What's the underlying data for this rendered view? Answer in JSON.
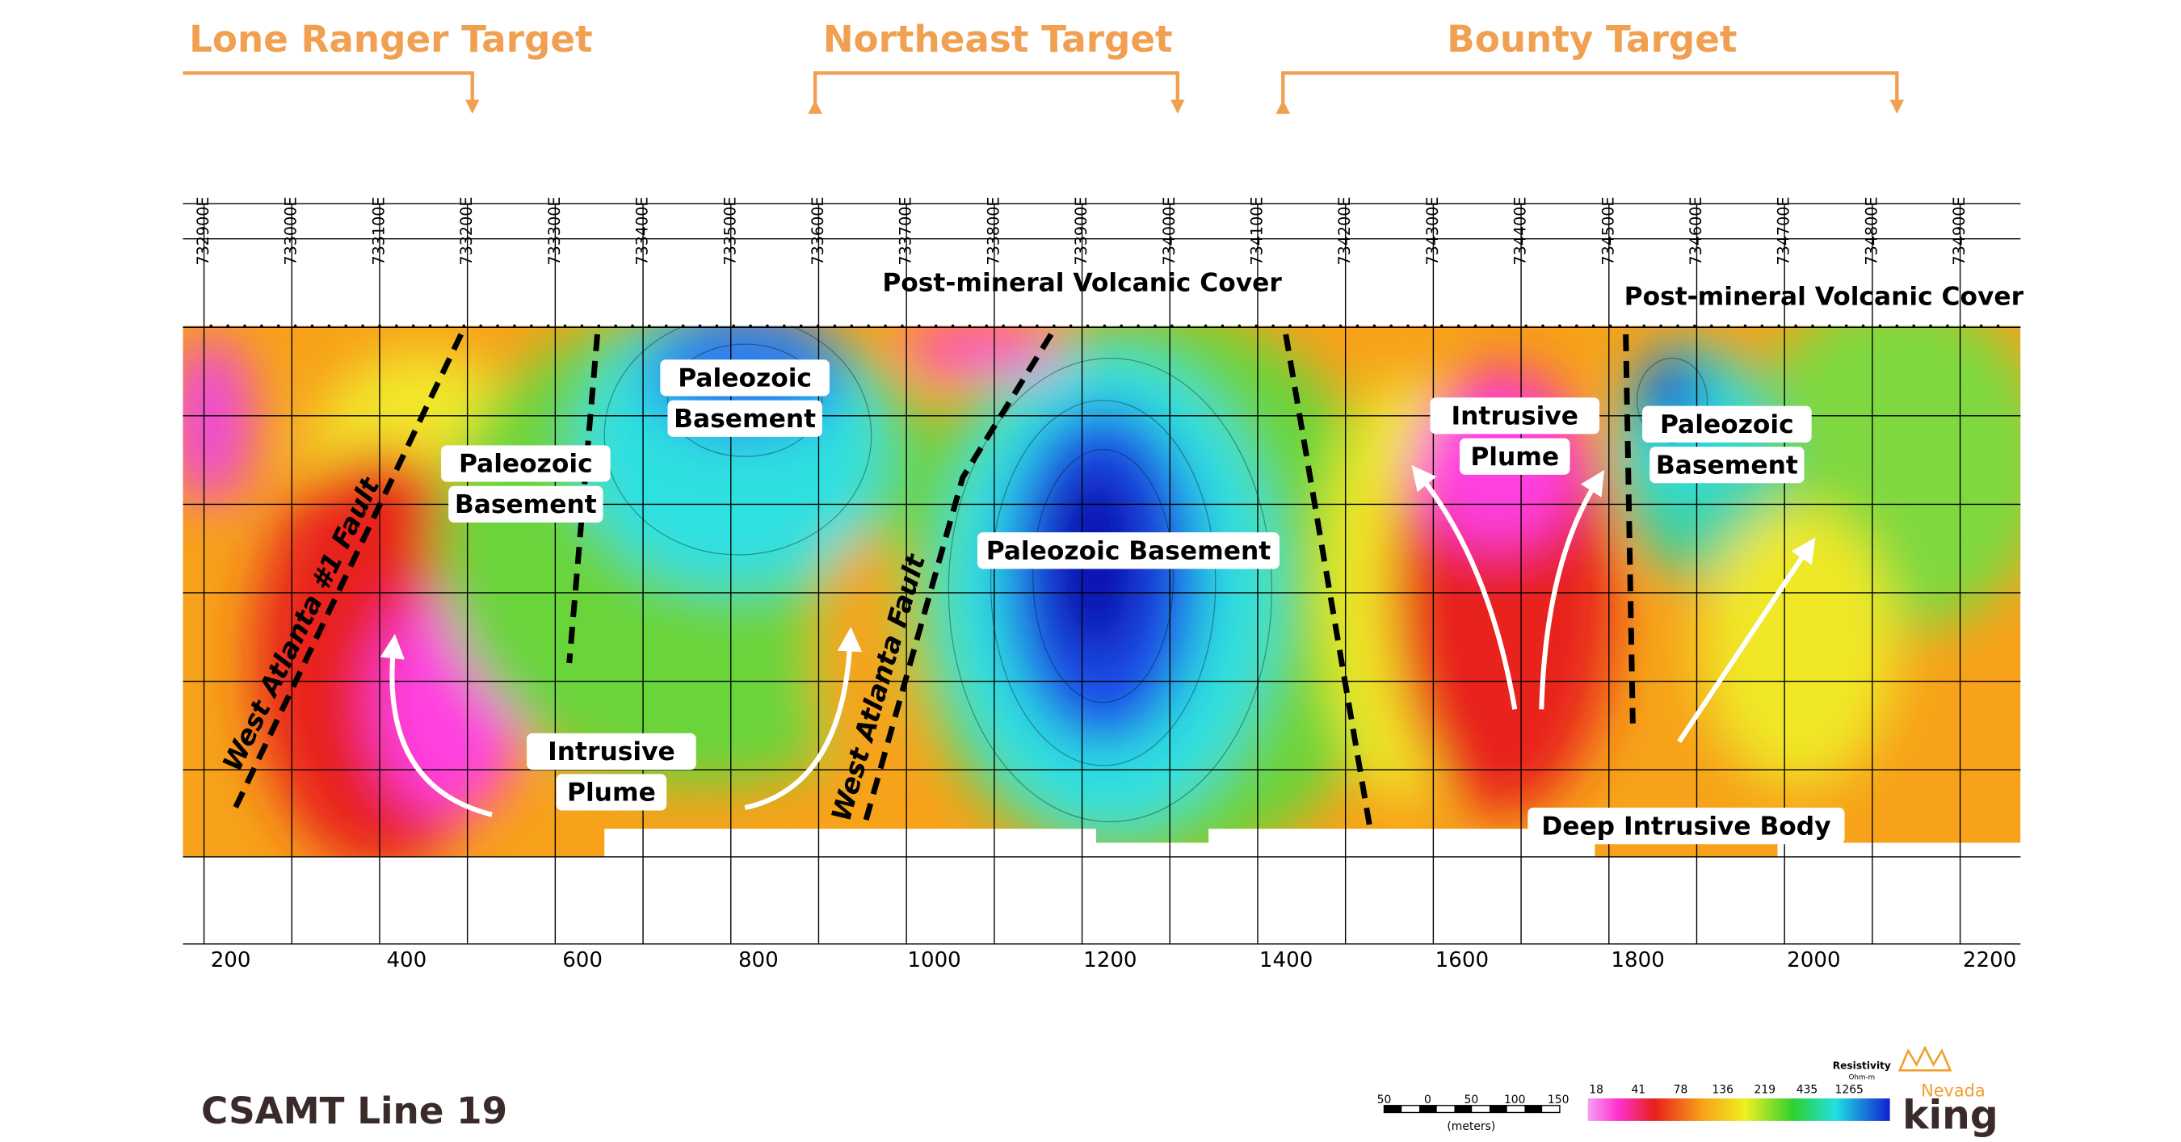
{
  "targets": [
    "Lone Ranger Target",
    "Northeast Target",
    "Bounty Target"
  ],
  "eastings": [
    "732900E",
    "733000E",
    "733100E",
    "733200E",
    "733300E",
    "733400E",
    "733500E",
    "733600E",
    "733700E",
    "733800E",
    "733900E",
    "734000E",
    "734100E",
    "734200E",
    "734300E",
    "734400E",
    "734500E",
    "734600E",
    "734700E",
    "734800E",
    "734900E"
  ],
  "distance_labels": [
    200,
    400,
    600,
    800,
    1000,
    1200,
    1400,
    1600,
    1800,
    2000,
    2200
  ],
  "covers": [
    "Post-mineral Volcanic Cover",
    "Post-mineral Volcanic Cover"
  ],
  "faults": [
    "West Atlanta #1 Fault",
    "West Atlanta Fault"
  ],
  "boxes": [
    [
      "Paleozoic",
      "Basement"
    ],
    [
      "Paleozoic",
      "Basement"
    ],
    [
      "Paleozoic Basement"
    ],
    [
      "Intrusive",
      "Plume"
    ],
    [
      "Intrusive",
      "Plume"
    ],
    [
      "Paleozoic",
      "Basement"
    ],
    [
      "Deep Intrusive Body"
    ]
  ],
  "title": "CSAMT Line 19",
  "legend": {
    "title": "Resistivity",
    "unit": "Ohm-m",
    "values": [
      "18",
      "41",
      "78",
      "136",
      "219",
      "435",
      "1265"
    ]
  },
  "scale_bar": {
    "labels": [
      "50",
      "0",
      "50",
      "100",
      "150"
    ],
    "unit": "(meters)"
  },
  "logo": {
    "top": "Nevada",
    "bottom": "king"
  }
}
